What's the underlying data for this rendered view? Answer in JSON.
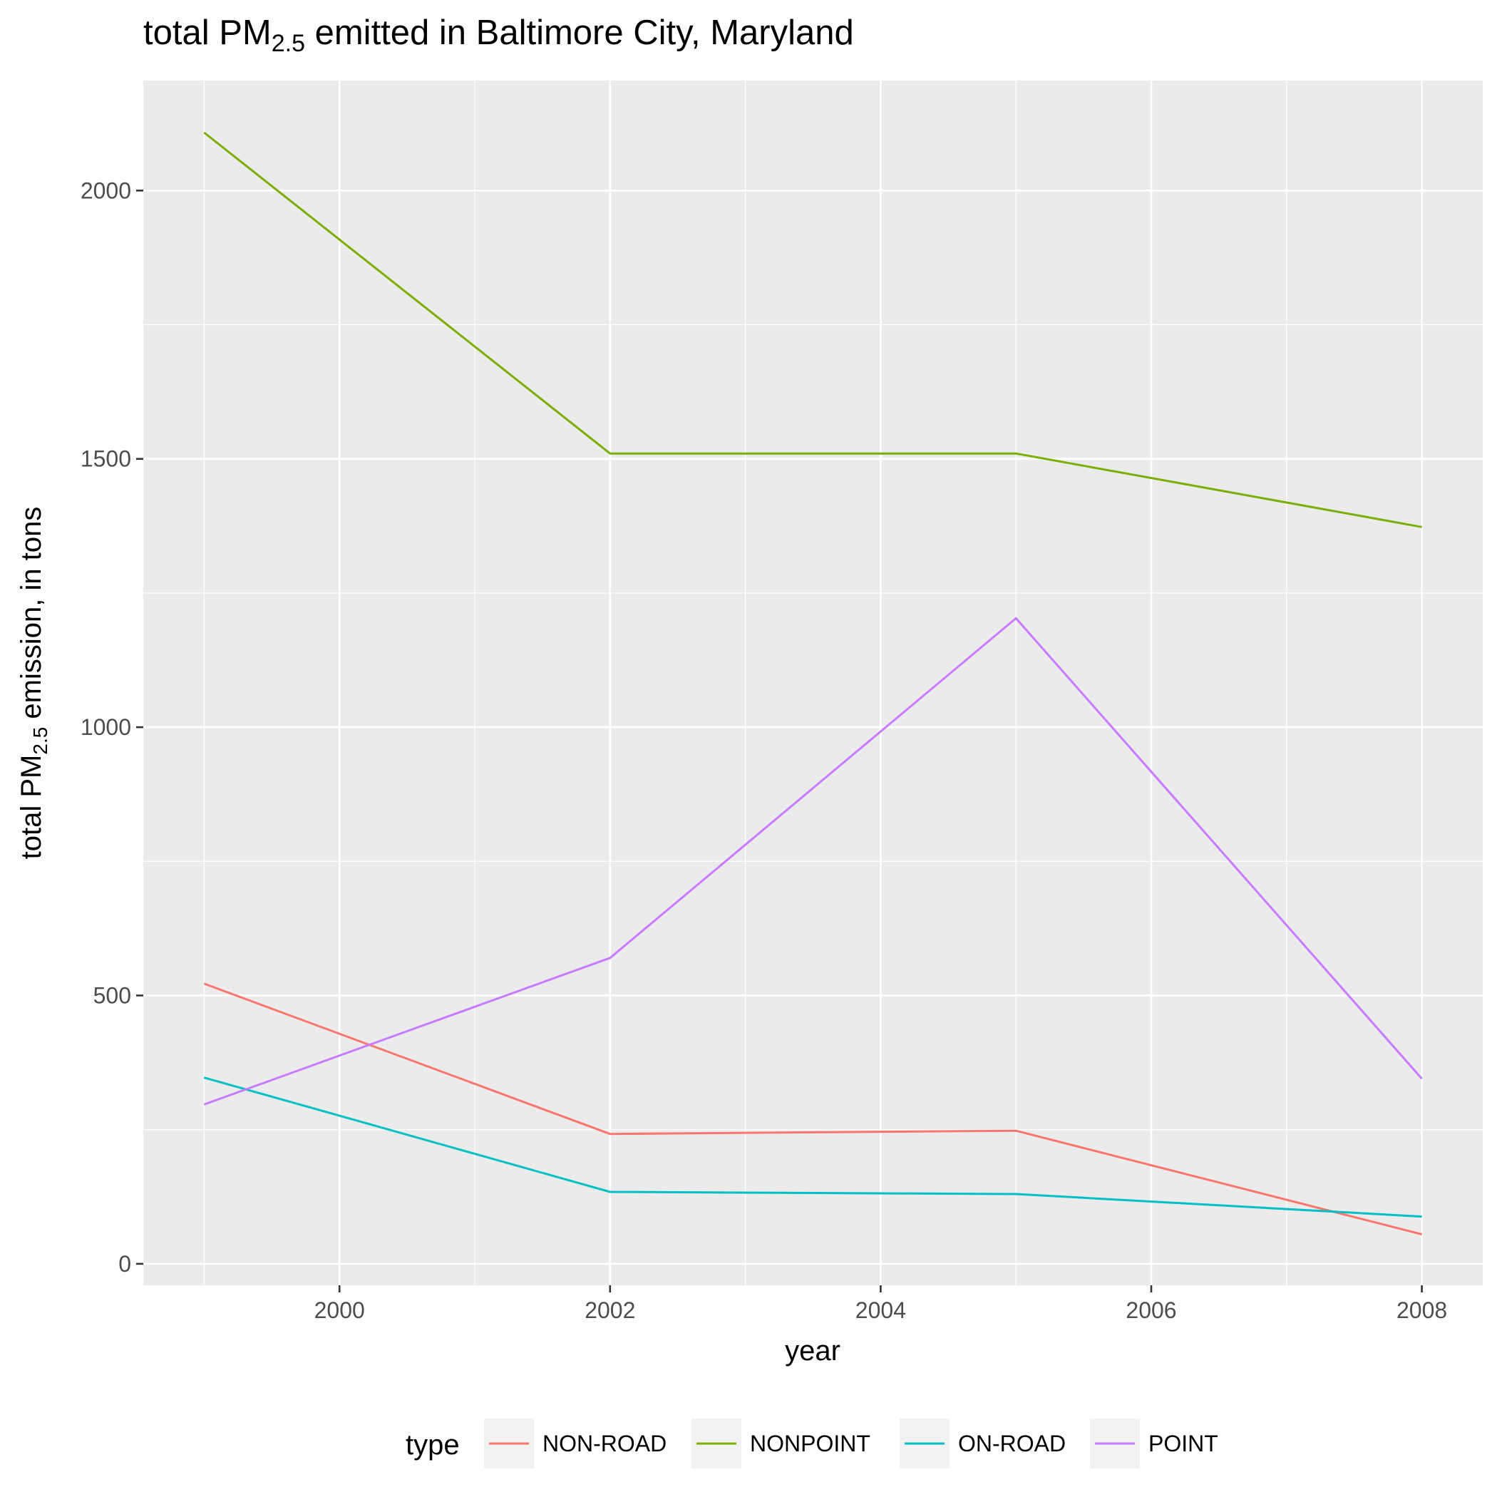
{
  "chart_data": {
    "type": "line",
    "title": {
      "prefix": "total PM",
      "subscript": "2.5",
      "suffix": " emitted in Baltimore City, Maryland"
    },
    "xlabel": "year",
    "ylabel": {
      "prefix": "total PM",
      "subscript": "2.5",
      "suffix": " emission, in tons"
    },
    "xlim": [
      1998.55,
      2008.45
    ],
    "ylim": [
      -40,
      2205
    ],
    "x_ticks": [
      2000,
      2002,
      2004,
      2006,
      2008
    ],
    "x_minor_ticks": [
      1999,
      2001,
      2003,
      2005,
      2007
    ],
    "y_ticks": [
      0,
      500,
      1000,
      1500,
      2000
    ],
    "y_minor_ticks": [
      250,
      750,
      1250,
      1750
    ],
    "grid": true,
    "legend": {
      "title": "type",
      "position": "bottom"
    },
    "x": [
      1999,
      2002,
      2005,
      2008
    ],
    "series": [
      {
        "name": "NON-ROAD",
        "color": "#f8766d",
        "values": [
          522,
          242,
          248,
          55
        ]
      },
      {
        "name": "NONPOINT",
        "color": "#7cae00",
        "values": [
          2108,
          1510,
          1510,
          1373
        ]
      },
      {
        "name": "ON-ROAD",
        "color": "#00bfc4",
        "values": [
          347,
          134,
          130,
          88
        ]
      },
      {
        "name": "POINT",
        "color": "#c77cff",
        "values": [
          297,
          570,
          1203,
          345
        ]
      }
    ]
  }
}
